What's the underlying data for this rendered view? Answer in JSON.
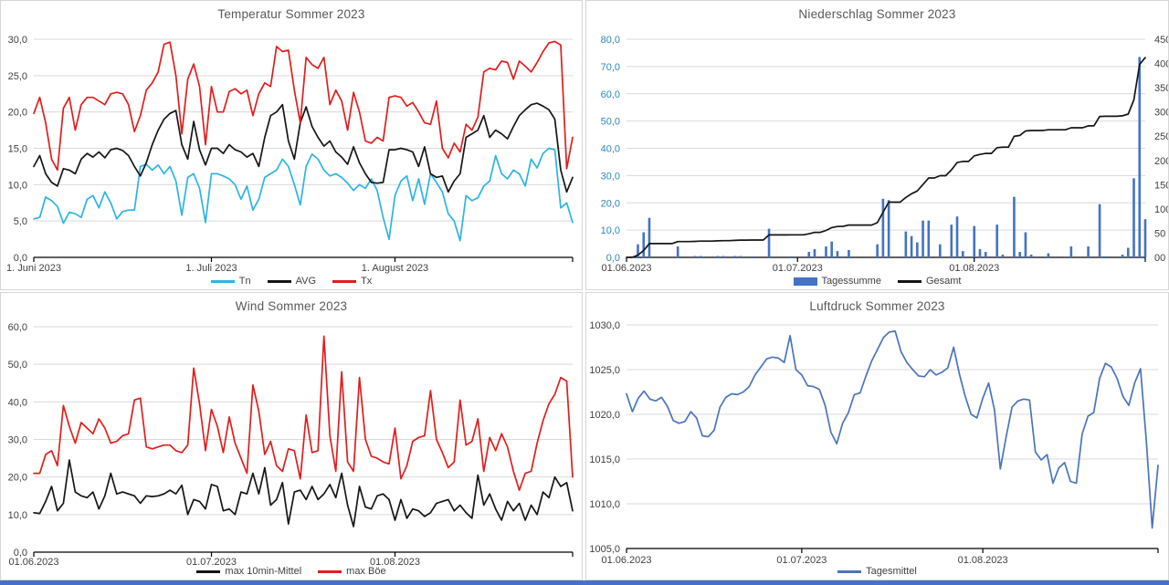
{
  "page": {
    "background": "#FFFFFF",
    "bottom_bar_color": "#4472C4"
  },
  "chart_data": [
    {
      "id": "temperature",
      "type": "line",
      "title": "Temperatur Sommer 2023",
      "x_tick_labels": [
        "1. Juni 2023",
        "1. Juli 2023",
        "1. August 2023"
      ],
      "x_tick_days": [
        0,
        30,
        61
      ],
      "n_days": 92,
      "grid": true,
      "legend_position": "bottom",
      "y_axis": {
        "min": 0,
        "max": 30,
        "step": 5,
        "color": "#3f3f3f",
        "tick_labels": [
          "0,0",
          "5,0",
          "10,0",
          "15,0",
          "20,0",
          "25,0",
          "30,0"
        ]
      },
      "series": [
        {
          "name": "Tn",
          "type": "line",
          "axis": "y",
          "color": "#2bb4e3",
          "values": [
            5.3,
            5.5,
            8.3,
            7.8,
            7.0,
            4.7,
            6.2,
            6.0,
            5.5,
            8.0,
            8.5,
            6.8,
            9.0,
            7.5,
            5.3,
            6.3,
            6.5,
            6.5,
            12.5,
            12.8,
            12.0,
            12.7,
            11.5,
            12.5,
            10.5,
            5.8,
            11.0,
            11.5,
            9.5,
            4.8,
            11.5,
            11.5,
            11.2,
            10.8,
            10.0,
            8.0,
            9.8,
            6.5,
            8.0,
            11.0,
            11.5,
            12.0,
            13.5,
            12.5,
            10.0,
            7.2,
            12.5,
            14.2,
            13.5,
            12.0,
            11.2,
            11.5,
            11.0,
            10.2,
            9.2,
            10.0,
            9.5,
            10.8,
            9.2,
            5.5,
            2.5,
            8.5,
            10.5,
            11.2,
            7.8,
            10.8,
            7.3,
            11.5,
            10.3,
            9.0,
            6.0,
            5.0,
            2.3,
            8.5,
            7.8,
            8.2,
            9.8,
            10.5,
            14.0,
            11.5,
            10.8,
            12.0,
            11.5,
            9.8,
            13.5,
            12.3,
            14.3,
            15.0,
            14.8,
            6.8,
            7.5,
            4.8
          ]
        },
        {
          "name": "AVG",
          "type": "line",
          "axis": "y",
          "color": "#151515",
          "values": [
            12.5,
            14.0,
            11.5,
            10.3,
            9.8,
            12.2,
            12.0,
            11.5,
            13.5,
            14.3,
            13.8,
            14.5,
            13.7,
            14.8,
            15.0,
            14.7,
            14.0,
            12.5,
            11.2,
            13.0,
            15.5,
            17.5,
            19.0,
            19.8,
            20.2,
            15.5,
            13.5,
            18.7,
            14.8,
            12.7,
            15.0,
            15.0,
            14.3,
            15.5,
            14.8,
            14.5,
            13.8,
            14.3,
            12.5,
            16.5,
            19.5,
            20.0,
            21.0,
            16.0,
            13.5,
            18.5,
            20.7,
            18.0,
            16.5,
            15.3,
            16.0,
            14.5,
            13.8,
            12.8,
            15.2,
            13.0,
            11.5,
            10.3,
            10.2,
            10.3,
            14.8,
            14.8,
            15.0,
            14.8,
            14.5,
            12.5,
            15.2,
            11.5,
            11.0,
            11.2,
            9.0,
            10.5,
            11.5,
            16.5,
            17.0,
            17.5,
            19.5,
            16.5,
            17.5,
            17.0,
            16.3,
            18.0,
            19.5,
            20.3,
            21.0,
            21.2,
            20.8,
            20.3,
            19.0,
            12.0,
            9.0,
            11.0
          ]
        },
        {
          "name": "Tx",
          "type": "line",
          "axis": "y",
          "color": "#e11d1d",
          "values": [
            19.8,
            22.0,
            18.5,
            13.5,
            12.0,
            20.5,
            22.0,
            17.5,
            21.0,
            22.0,
            22.0,
            21.5,
            21.0,
            22.5,
            22.7,
            22.5,
            21.0,
            17.3,
            19.5,
            23.0,
            24.0,
            25.5,
            29.3,
            29.6,
            25.0,
            17.0,
            24.5,
            26.6,
            23.5,
            15.5,
            23.5,
            20.0,
            20.0,
            22.8,
            23.2,
            22.5,
            23.0,
            19.5,
            22.5,
            24.0,
            23.5,
            29.0,
            28.3,
            28.5,
            23.0,
            18.5,
            27.5,
            26.5,
            26.0,
            27.5,
            21.0,
            23.0,
            21.5,
            17.5,
            22.7,
            20.0,
            16.0,
            15.7,
            16.5,
            16.0,
            22.0,
            22.2,
            22.0,
            20.8,
            21.3,
            20.0,
            18.5,
            18.3,
            21.5,
            15.0,
            13.7,
            15.7,
            14.5,
            18.3,
            17.5,
            19.3,
            25.5,
            26.0,
            25.8,
            27.0,
            26.8,
            24.5,
            27.0,
            26.3,
            25.5,
            26.8,
            28.3,
            29.5,
            29.7,
            29.2,
            12.2,
            16.5
          ]
        }
      ]
    },
    {
      "id": "precipitation",
      "type": "bar",
      "title": "Niederschlag Sommer 2023",
      "x_tick_labels": [
        "01.06.2023",
        "01.07.2023",
        "01.08.2023"
      ],
      "x_tick_days": [
        0,
        30,
        61
      ],
      "n_days": 92,
      "grid": true,
      "legend_position": "bottom",
      "y_axis": {
        "min": 0,
        "max": 80,
        "step": 10,
        "color": "#3187b8",
        "tick_labels": [
          "0,0",
          "10,0",
          "20,0",
          "30,0",
          "40,0",
          "50,0",
          "60,0",
          "70,0",
          "80,0"
        ]
      },
      "y2_axis": {
        "min": 0,
        "max": 450,
        "step": 50,
        "color": "#3f3f3f",
        "tick_labels": [
          "00",
          "50",
          "100",
          "150",
          "200",
          "250",
          "300",
          "350",
          "400",
          "450"
        ]
      },
      "series": [
        {
          "name": "Tagessumme",
          "type": "bar",
          "axis": "y",
          "color": "#4472c4",
          "values": [
            0,
            0,
            4.8,
            9.2,
            14.5,
            0,
            0,
            0,
            0,
            4.0,
            0,
            0,
            0.5,
            0.5,
            0,
            0,
            0.5,
            0.5,
            0,
            0.5,
            0.5,
            0,
            0.3,
            0,
            0,
            10.5,
            0,
            0,
            0,
            0.3,
            0,
            0,
            2.0,
            3.0,
            0,
            4.0,
            5.8,
            2.3,
            0.3,
            2.7,
            0,
            0,
            0,
            0,
            4.8,
            21.5,
            21.0,
            0,
            0,
            9.5,
            7.8,
            5.5,
            13.5,
            13.5,
            0,
            4.8,
            0,
            12.0,
            15.0,
            2.3,
            0,
            11.5,
            3.0,
            2.0,
            0,
            12.0,
            1.0,
            0,
            22.2,
            2.0,
            9.2,
            1.0,
            0,
            0,
            1.5,
            0,
            0,
            0,
            4.0,
            0,
            0,
            4.0,
            0,
            19.5,
            0.3,
            0,
            0,
            1.0,
            3.5,
            29.0,
            73.5,
            14.0
          ]
        },
        {
          "name": "Gesamt",
          "type": "line",
          "axis": "y2",
          "color": "#151515",
          "values": [
            0,
            0,
            4.8,
            14,
            28.5,
            28.5,
            28.5,
            28.5,
            28.5,
            32.5,
            32.5,
            32.5,
            33,
            33.5,
            33.5,
            33.5,
            34,
            34.5,
            34.5,
            35,
            35.5,
            35.5,
            35.8,
            35.8,
            35.8,
            46.3,
            46.3,
            46.3,
            46.3,
            46.6,
            46.6,
            46.6,
            48.6,
            51.6,
            51.6,
            55.6,
            61.4,
            63.7,
            64,
            66.7,
            66.7,
            66.7,
            66.7,
            66.7,
            71.5,
            93,
            114,
            114,
            114,
            123.5,
            131.3,
            136.8,
            150.3,
            163.8,
            163.8,
            168.6,
            168.6,
            180.6,
            195.6,
            197.9,
            197.9,
            209.4,
            212.4,
            214.4,
            214.4,
            226.4,
            227.4,
            227.4,
            249.6,
            251.6,
            260.8,
            261.8,
            261.8,
            261.8,
            263.3,
            263.3,
            263.3,
            263.3,
            267.3,
            267.3,
            267.3,
            271.3,
            271.3,
            290.8,
            291.1,
            291.1,
            291.1,
            292.1,
            295.6,
            324.6,
            398.1,
            412.1
          ]
        }
      ]
    },
    {
      "id": "wind",
      "type": "line",
      "title": "Wind Sommer 2023",
      "x_tick_labels": [
        "01.06.2023",
        "01.07.2023",
        "01.08.2023"
      ],
      "x_tick_days": [
        0,
        30,
        61
      ],
      "n_days": 92,
      "grid": true,
      "legend_position": "bottom",
      "y_axis": {
        "min": 0,
        "max": 60,
        "step": 10,
        "color": "#3f3f3f",
        "tick_labels": [
          "0,0",
          "10,0",
          "20,0",
          "30,0",
          "40,0",
          "50,0",
          "60,0"
        ]
      },
      "series": [
        {
          "name": "max 10min-Mittel",
          "type": "line",
          "axis": "y",
          "color": "#151515",
          "values": [
            10.5,
            10.3,
            13.5,
            17.5,
            11.0,
            13.0,
            24.5,
            16.0,
            15.0,
            14.5,
            16.0,
            11.5,
            15.0,
            21.0,
            15.5,
            16.0,
            15.5,
            15.0,
            13.0,
            15.0,
            14.8,
            15.0,
            15.5,
            16.5,
            15.5,
            17.8,
            10.0,
            14.0,
            13.5,
            11.5,
            18.0,
            17.5,
            11.0,
            11.5,
            10.0,
            16.0,
            15.5,
            21.0,
            15.5,
            22.5,
            12.5,
            14.0,
            18.5,
            7.5,
            16.0,
            16.5,
            14.0,
            17.5,
            14.0,
            15.5,
            18.0,
            14.5,
            21.0,
            12.5,
            6.8,
            17.5,
            12.0,
            11.5,
            15.0,
            15.5,
            14.0,
            8.5,
            14.0,
            9.0,
            11.5,
            11.0,
            9.5,
            10.5,
            13.0,
            13.5,
            14.0,
            11.0,
            12.5,
            10.5,
            9.0,
            20.5,
            12.5,
            15.5,
            11.5,
            8.5,
            13.5,
            11.0,
            13.0,
            8.5,
            12.5,
            10.0,
            16.0,
            14.5,
            20.0,
            17.5,
            18.5,
            11.0
          ]
        },
        {
          "name": "max Böe",
          "type": "line",
          "axis": "y",
          "color": "#e11d1d",
          "values": [
            21.0,
            21.0,
            26.0,
            27.0,
            23.0,
            39.0,
            33.5,
            29.0,
            34.5,
            33.0,
            31.5,
            35.5,
            33.0,
            29.0,
            29.5,
            31.0,
            31.5,
            40.5,
            41.0,
            28.0,
            27.5,
            28.0,
            28.5,
            28.5,
            27.0,
            26.5,
            28.5,
            49.0,
            39.5,
            27.0,
            38.0,
            33.5,
            26.5,
            36.0,
            29.0,
            25.0,
            21.0,
            44.5,
            37.5,
            26.0,
            29.5,
            23.0,
            21.5,
            27.5,
            27.0,
            19.5,
            36.5,
            26.5,
            27.0,
            57.5,
            31.0,
            21.5,
            48.0,
            24.0,
            21.5,
            46.5,
            30.0,
            25.5,
            25.0,
            24.0,
            23.5,
            33.0,
            19.5,
            23.0,
            29.5,
            30.5,
            31.0,
            43.0,
            30.0,
            26.5,
            22.5,
            24.0,
            40.5,
            28.5,
            29.5,
            35.5,
            21.5,
            30.5,
            27.0,
            31.5,
            28.0,
            21.5,
            16.5,
            21.0,
            21.5,
            29.0,
            35.0,
            39.5,
            42.0,
            46.5,
            45.5,
            20.0
          ]
        }
      ]
    },
    {
      "id": "pressure",
      "type": "line",
      "title": "Luftdruck Sommer 2023",
      "x_tick_labels": [
        "01.06.2023",
        "01.07.2023",
        "01.08.2023"
      ],
      "x_tick_days": [
        0,
        30,
        61
      ],
      "n_days": 92,
      "grid": true,
      "legend_position": "bottom",
      "y_axis": {
        "min": 1005,
        "max": 1030,
        "step": 5,
        "color": "#3f3f3f",
        "tick_labels": [
          "1005,0",
          "1010,0",
          "1015,0",
          "1020,0",
          "1025,0",
          "1030,0"
        ]
      },
      "series": [
        {
          "name": "Tagesmittel",
          "type": "line",
          "axis": "y",
          "color": "#4a74bc",
          "values": [
            1022.3,
            1020.3,
            1021.8,
            1022.6,
            1021.7,
            1021.5,
            1021.9,
            1020.9,
            1019.3,
            1019.0,
            1019.2,
            1020.3,
            1019.6,
            1017.6,
            1017.5,
            1018.2,
            1020.8,
            1021.9,
            1022.3,
            1022.2,
            1022.5,
            1023.1,
            1024.4,
            1025.3,
            1026.2,
            1026.4,
            1026.3,
            1025.8,
            1028.8,
            1025.0,
            1024.4,
            1023.2,
            1023.1,
            1022.8,
            1021.0,
            1018.0,
            1016.7,
            1019.0,
            1020.2,
            1022.2,
            1022.4,
            1024.3,
            1026.0,
            1027.3,
            1028.6,
            1029.2,
            1029.3,
            1027.0,
            1025.8,
            1025.0,
            1024.3,
            1024.2,
            1025.0,
            1024.4,
            1024.7,
            1025.2,
            1027.5,
            1024.5,
            1022.0,
            1020.0,
            1019.6,
            1021.8,
            1023.5,
            1020.5,
            1013.9,
            1017.5,
            1020.8,
            1021.5,
            1021.7,
            1021.6,
            1015.8,
            1014.9,
            1015.5,
            1012.3,
            1014.0,
            1014.6,
            1012.5,
            1012.3,
            1017.8,
            1019.8,
            1020.2,
            1024.0,
            1025.7,
            1025.3,
            1024.0,
            1022.0,
            1021.0,
            1023.5,
            1025.1,
            1017.0,
            1007.3,
            1014.3
          ]
        }
      ]
    }
  ]
}
